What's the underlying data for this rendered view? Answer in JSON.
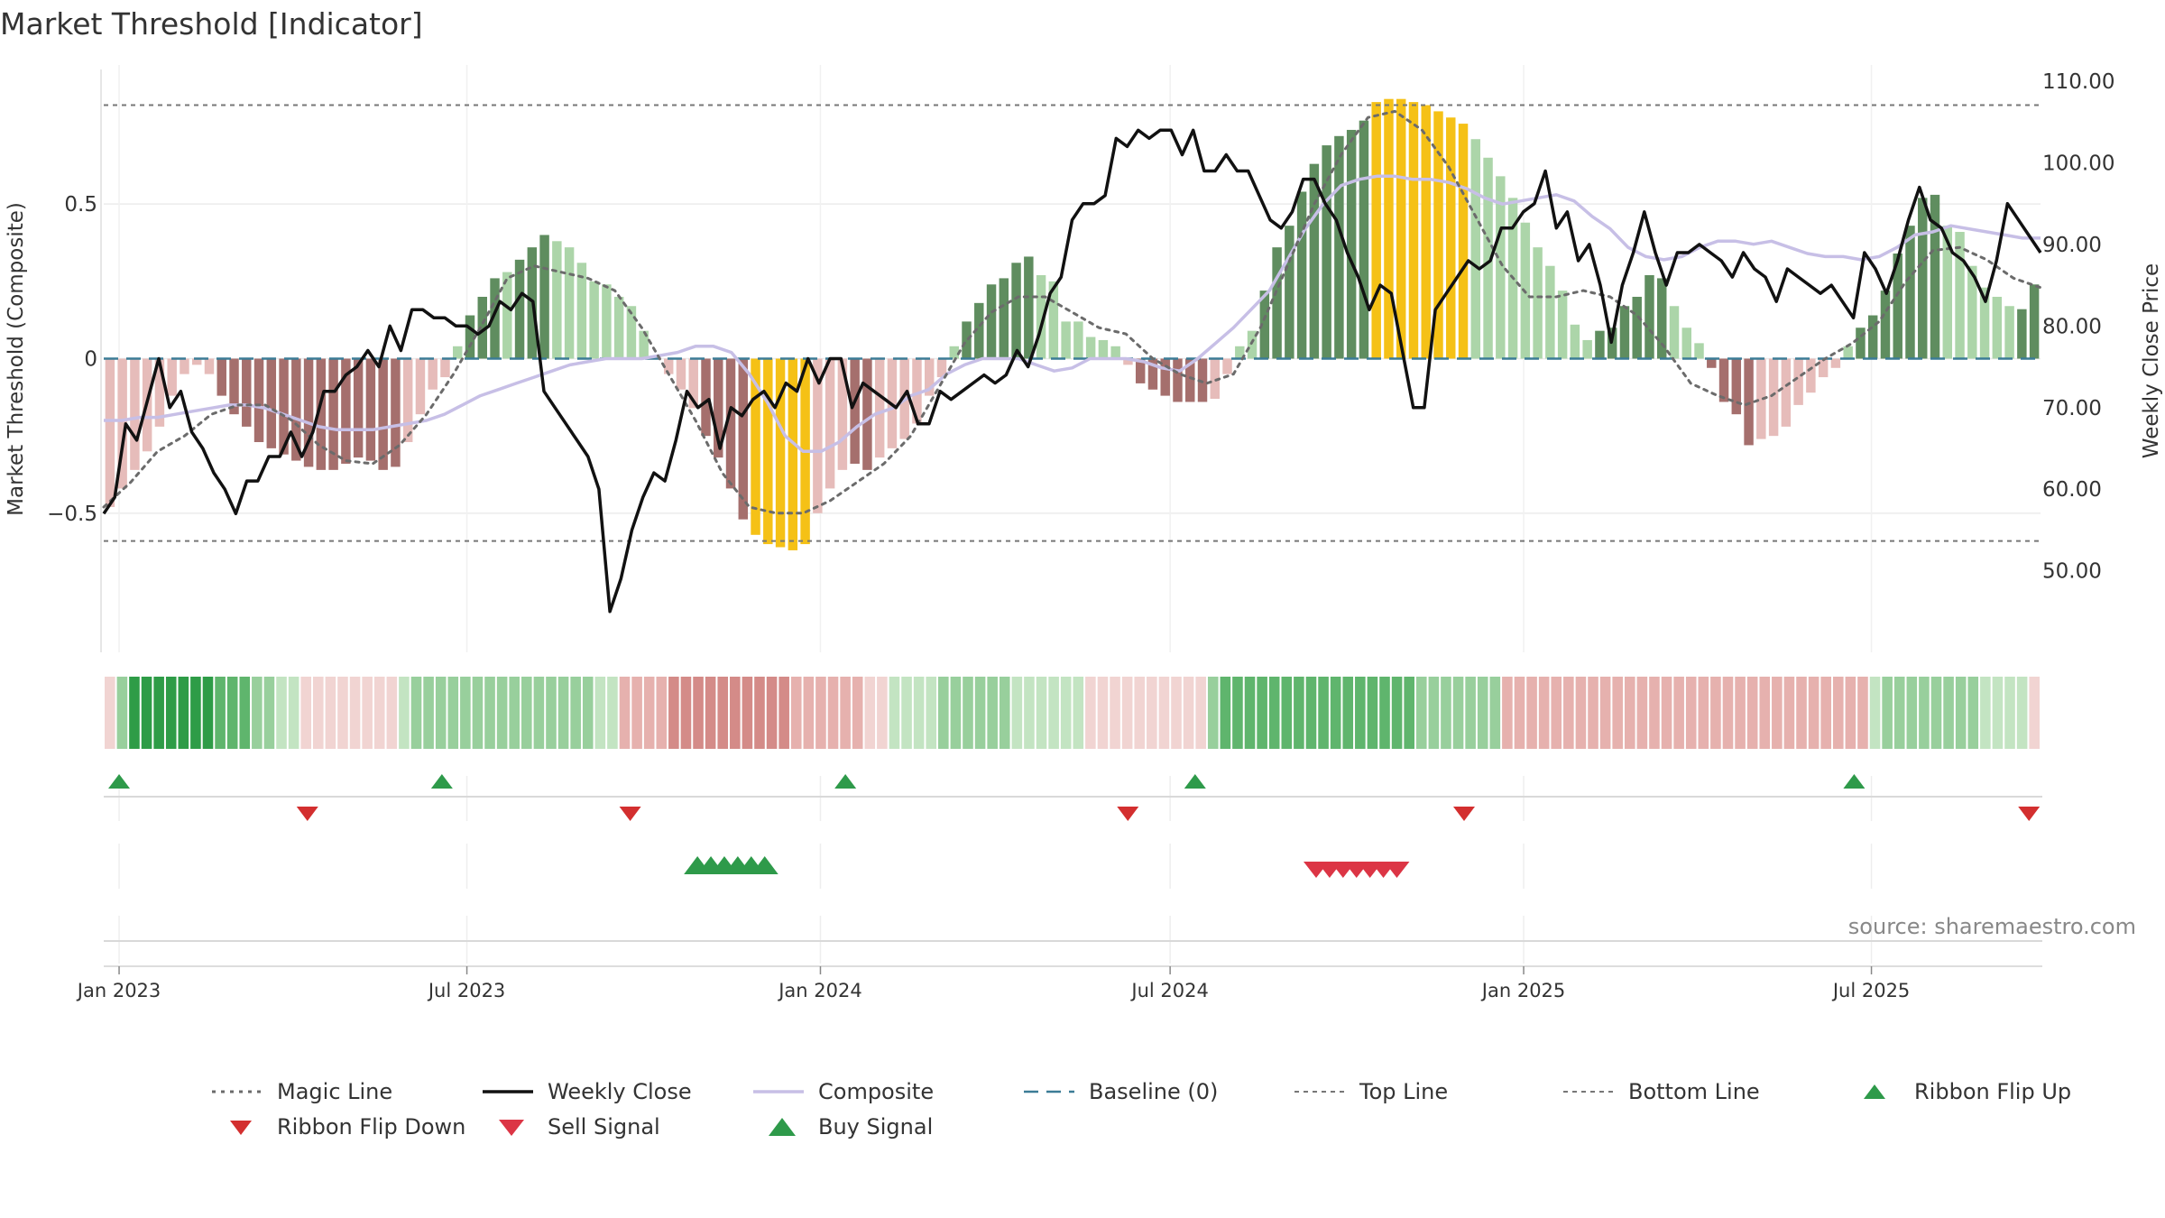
{
  "title": "Market Threshold [Indicator]",
  "source": "source: sharemaestro.com",
  "colors": {
    "bar_dark_green": "#5f8d5f",
    "bar_light_green": "#acd5a9",
    "bar_dark_red": "#a56f6d",
    "bar_light_red": "#e6bcba",
    "bar_gold": "#f5c116",
    "weekly_close": "#111111",
    "composite": "#c7bfe6",
    "magic_line": "#6b6b6b",
    "baseline": "#3b7c96",
    "threshold_lines": "#777777",
    "buy": "#2e9a4a",
    "sell": "#dc3545",
    "flip_up": "#2e9a4a",
    "flip_down": "#d32f2f"
  },
  "chart_data": {
    "type": "bar",
    "x_axis": {
      "start": "2022-12-24",
      "end": "2025-09-27",
      "tick_labels": [
        "Jan 2023",
        "Jul 2023",
        "Jan 2024",
        "Jul 2024",
        "Jan 2025",
        "Jul 2025"
      ],
      "tick_dates": [
        "2023-01-01",
        "2023-07-01",
        "2024-01-01",
        "2024-07-01",
        "2025-01-01",
        "2025-07-01"
      ]
    },
    "left_axis": {
      "label": "Market Threshold (Composite)",
      "ticks": [
        0.5,
        0,
        -0.5
      ],
      "tick_labels": [
        "0.5",
        "0",
        "−0.5"
      ],
      "range": [
        -0.95,
        0.95
      ]
    },
    "right_axis": {
      "label": "Weekly Close Price",
      "ticks": [
        110,
        100,
        90,
        80,
        70,
        60,
        50
      ],
      "tick_labels": [
        "110.00",
        "100.00",
        "90.00",
        "80.00",
        "70.00",
        "60.00",
        "50.00"
      ],
      "range": [
        40,
        112
      ]
    },
    "top_line": 0.82,
    "bottom_line": -0.59,
    "threshold_bars": [
      -0.48,
      -0.42,
      -0.36,
      -0.3,
      -0.22,
      -0.12,
      -0.05,
      -0.02,
      -0.05,
      -0.12,
      -0.18,
      -0.22,
      -0.27,
      -0.29,
      -0.31,
      -0.33,
      -0.35,
      -0.36,
      -0.36,
      -0.34,
      -0.32,
      -0.33,
      -0.36,
      -0.35,
      -0.27,
      -0.18,
      -0.1,
      -0.06,
      0.04,
      0.14,
      0.2,
      0.26,
      0.28,
      0.32,
      0.36,
      0.4,
      0.38,
      0.36,
      0.31,
      0.25,
      0.24,
      0.2,
      0.17,
      0.09,
      0.01,
      -0.05,
      -0.1,
      -0.16,
      -0.25,
      -0.32,
      -0.42,
      -0.52,
      -0.57,
      -0.6,
      -0.61,
      -0.62,
      -0.6,
      -0.5,
      -0.42,
      -0.36,
      -0.34,
      -0.36,
      -0.32,
      -0.29,
      -0.26,
      -0.21,
      -0.12,
      -0.06,
      0.04,
      0.12,
      0.18,
      0.24,
      0.26,
      0.31,
      0.33,
      0.27,
      0.25,
      0.12,
      0.12,
      0.07,
      0.06,
      0.04,
      -0.02,
      -0.08,
      -0.1,
      -0.12,
      -0.14,
      -0.14,
      -0.14,
      -0.13,
      -0.05,
      0.04,
      0.09,
      0.22,
      0.36,
      0.43,
      0.54,
      0.63,
      0.69,
      0.72,
      0.74,
      0.77,
      0.83,
      0.84,
      0.84,
      0.83,
      0.82,
      0.8,
      0.78,
      0.76,
      0.71,
      0.65,
      0.59,
      0.52,
      0.44,
      0.36,
      0.3,
      0.22,
      0.11,
      0.06,
      0.09,
      0.1,
      0.17,
      0.2,
      0.27,
      0.26,
      0.17,
      0.1,
      0.05,
      -0.03,
      -0.14,
      -0.18,
      -0.28,
      -0.26,
      -0.25,
      -0.22,
      -0.15,
      -0.11,
      -0.06,
      -0.03,
      0.04,
      0.1,
      0.14,
      0.22,
      0.34,
      0.43,
      0.52,
      0.53,
      0.43,
      0.41,
      0.3,
      0.23,
      0.2,
      0.17,
      0.16,
      0.24
    ],
    "bar_colors": [
      "lr",
      "lr",
      "lr",
      "lr",
      "lr",
      "lr",
      "lr",
      "lr",
      "lr",
      "dr",
      "dr",
      "dr",
      "dr",
      "dr",
      "dr",
      "dr",
      "dr",
      "dr",
      "dr",
      "dr",
      "dr",
      "dr",
      "dr",
      "dr",
      "lr",
      "lr",
      "lr",
      "lr",
      "lg",
      "dg",
      "dg",
      "dg",
      "lg",
      "dg",
      "dg",
      "dg",
      "lg",
      "lg",
      "lg",
      "lg",
      "lg",
      "lg",
      "lg",
      "lg",
      "lr",
      "lr",
      "lr",
      "lr",
      "dr",
      "dr",
      "dr",
      "dr",
      "gold",
      "gold",
      "gold",
      "gold",
      "gold",
      "lr",
      "lr",
      "lr",
      "dr",
      "dr",
      "lr",
      "lr",
      "lr",
      "lr",
      "lr",
      "lr",
      "lg",
      "dg",
      "dg",
      "dg",
      "dg",
      "dg",
      "dg",
      "lg",
      "lg",
      "lg",
      "lg",
      "lg",
      "lg",
      "lg",
      "lr",
      "dr",
      "dr",
      "dr",
      "dr",
      "dr",
      "dr",
      "lr",
      "lr",
      "lg",
      "lg",
      "dg",
      "dg",
      "dg",
      "dg",
      "dg",
      "dg",
      "dg",
      "dg",
      "dg",
      "gold",
      "gold",
      "gold",
      "gold",
      "gold",
      "gold",
      "gold",
      "gold",
      "lg",
      "lg",
      "lg",
      "lg",
      "lg",
      "lg",
      "lg",
      "lg",
      "lg",
      "lg",
      "dg",
      "dg",
      "dg",
      "dg",
      "dg",
      "dg",
      "lg",
      "lg",
      "lg",
      "dr",
      "dr",
      "dr",
      "dr",
      "lr",
      "lr",
      "lr",
      "lr",
      "lr",
      "lr",
      "lr",
      "lg",
      "dg",
      "dg",
      "dg",
      "dg",
      "dg",
      "dg",
      "dg",
      "lg",
      "lg",
      "lg",
      "lg",
      "lg",
      "lg",
      "dg",
      "dg"
    ],
    "weekly_close": [
      57,
      59,
      68,
      66,
      71,
      76,
      70,
      72,
      67,
      65,
      62,
      60,
      57,
      61,
      61,
      64,
      64,
      67,
      64,
      67,
      72,
      72,
      74,
      75,
      77,
      75,
      80,
      77,
      82,
      82,
      81,
      81,
      80,
      80,
      79,
      80,
      83,
      82,
      84,
      83,
      72,
      70,
      68,
      66,
      64,
      60,
      45,
      49,
      55,
      59,
      62,
      61,
      66,
      72,
      70,
      71,
      65,
      70,
      69,
      71,
      72,
      70,
      73,
      72,
      76,
      73,
      76,
      76,
      70,
      73,
      72,
      71,
      70,
      72,
      68,
      68,
      72,
      71,
      72,
      73,
      74,
      73,
      74,
      77,
      75,
      79,
      84,
      86,
      93,
      95,
      95,
      96,
      103,
      102,
      104,
      103,
      104,
      104,
      101,
      104,
      99,
      99,
      101,
      99,
      99,
      96,
      93,
      92,
      94,
      98,
      98,
      95,
      93,
      89,
      86,
      82,
      85,
      84,
      77,
      70,
      70,
      82,
      84,
      86,
      88,
      87,
      88,
      92,
      92,
      94,
      95,
      99,
      92,
      94,
      88,
      90,
      85,
      78,
      85,
      89,
      94,
      89,
      85,
      89,
      89,
      90,
      89,
      88,
      86,
      89,
      87,
      86,
      83,
      87,
      86,
      85,
      84,
      85,
      83,
      81,
      89,
      87,
      84,
      88,
      93,
      97,
      93,
      92,
      89,
      88,
      86,
      83,
      88,
      95,
      93,
      91,
      89
    ],
    "composite": [
      -0.2,
      -0.2,
      -0.19,
      -0.19,
      -0.18,
      -0.17,
      -0.16,
      -0.15,
      -0.15,
      -0.16,
      -0.18,
      -0.2,
      -0.22,
      -0.23,
      -0.23,
      -0.23,
      -0.22,
      -0.21,
      -0.2,
      -0.18,
      -0.15,
      -0.12,
      -0.1,
      -0.08,
      -0.06,
      -0.04,
      -0.02,
      -0.01,
      0.0,
      0.0,
      0.0,
      0.01,
      0.02,
      0.04,
      0.04,
      0.02,
      -0.05,
      -0.14,
      -0.25,
      -0.3,
      -0.3,
      -0.27,
      -0.22,
      -0.18,
      -0.16,
      -0.12,
      -0.1,
      -0.05,
      -0.02,
      0.0,
      0.0,
      0.0,
      -0.02,
      -0.04,
      -0.03,
      0.0,
      0.0,
      0.0,
      -0.01,
      -0.03,
      -0.04,
      0.0,
      0.05,
      0.1,
      0.16,
      0.22,
      0.32,
      0.42,
      0.5,
      0.56,
      0.58,
      0.59,
      0.59,
      0.58,
      0.58,
      0.57,
      0.55,
      0.52,
      0.5,
      0.51,
      0.52,
      0.53,
      0.51,
      0.46,
      0.42,
      0.36,
      0.33,
      0.32,
      0.33,
      0.36,
      0.38,
      0.38,
      0.37,
      0.38,
      0.36,
      0.34,
      0.33,
      0.33,
      0.32,
      0.33,
      0.36,
      0.4,
      0.41,
      0.43,
      0.42,
      0.41,
      0.4,
      0.39,
      0.39
    ],
    "magic_line": [
      -0.48,
      -0.4,
      -0.3,
      -0.25,
      -0.18,
      -0.15,
      -0.15,
      -0.2,
      -0.28,
      -0.33,
      -0.34,
      -0.28,
      -0.18,
      -0.05,
      0.1,
      0.26,
      0.3,
      0.28,
      0.26,
      0.22,
      0.1,
      -0.05,
      -0.2,
      -0.37,
      -0.48,
      -0.5,
      -0.5,
      -0.46,
      -0.4,
      -0.34,
      -0.25,
      -0.1,
      0.05,
      0.15,
      0.2,
      0.2,
      0.15,
      0.1,
      0.08,
      0.0,
      -0.05,
      -0.08,
      -0.05,
      0.1,
      0.3,
      0.5,
      0.66,
      0.78,
      0.8,
      0.74,
      0.62,
      0.46,
      0.3,
      0.2,
      0.2,
      0.22,
      0.2,
      0.14,
      0.04,
      -0.08,
      -0.12,
      -0.15,
      -0.12,
      -0.06,
      0.0,
      0.05,
      0.12,
      0.25,
      0.35,
      0.36,
      0.32,
      0.26,
      0.23
    ],
    "signal_ribbon": [
      "r1",
      "g2",
      "g4",
      "g4",
      "g4",
      "g4",
      "g4",
      "g4",
      "g4",
      "g3",
      "g3",
      "g3",
      "g2",
      "g2",
      "g1",
      "g1",
      "r1",
      "r1",
      "r1",
      "r1",
      "r1",
      "r1",
      "r1",
      "r1",
      "g1",
      "g2",
      "g2",
      "g2",
      "g2",
      "g2",
      "g2",
      "g2",
      "g2",
      "g2",
      "g2",
      "g2",
      "g2",
      "g2",
      "g2",
      "g2",
      "g1",
      "g1",
      "r2",
      "r2",
      "r2",
      "r2",
      "r3",
      "r3",
      "r3",
      "r3",
      "r3",
      "r3",
      "r3",
      "r3",
      "r3",
      "r3",
      "r2",
      "r2",
      "r2",
      "r2",
      "r2",
      "r2",
      "r1",
      "r1",
      "g1",
      "g1",
      "g1",
      "g1",
      "g2",
      "g2",
      "g2",
      "g2",
      "g2",
      "g2",
      "g1",
      "g1",
      "g1",
      "g1",
      "g1",
      "g1",
      "r1",
      "r1",
      "r1",
      "r1",
      "r1",
      "r1",
      "r1",
      "r1",
      "r1",
      "r1",
      "g2",
      "g3",
      "g3",
      "g3",
      "g3",
      "g3",
      "g3",
      "g3",
      "g3",
      "g3",
      "g3",
      "g3",
      "g3",
      "g3",
      "g3",
      "g3",
      "g3",
      "g2",
      "g2",
      "g2",
      "g2",
      "g2",
      "g2",
      "g2",
      "r2",
      "r2",
      "r2",
      "r2",
      "r2",
      "r2",
      "r2",
      "r2",
      "r2",
      "r2",
      "r2",
      "r2",
      "r2",
      "r2",
      "r2",
      "r2",
      "r2",
      "r2",
      "r2",
      "r2",
      "r2",
      "r2",
      "r2",
      "r2",
      "r2",
      "r2",
      "r2",
      "r2",
      "r2",
      "r2",
      "g1",
      "g2",
      "g2",
      "g2",
      "g2",
      "g2",
      "g2",
      "g2",
      "g2",
      "g1",
      "g1",
      "g1",
      "g1",
      "r1"
    ],
    "ribbon_flip_up": [
      "2023-01-01",
      "2023-06-18",
      "2024-01-14",
      "2024-07-14",
      "2025-06-22"
    ],
    "ribbon_flip_down": [
      "2023-04-09",
      "2023-09-24",
      "2024-06-09",
      "2024-12-01",
      "2025-09-21"
    ],
    "buy_signal": [
      "2023-10-29",
      "2023-11-05",
      "2023-11-12",
      "2023-11-19",
      "2023-11-26",
      "2023-12-03"
    ],
    "sell_signal": [
      "2024-09-15",
      "2024-09-22",
      "2024-09-29",
      "2024-10-06",
      "2024-10-13",
      "2024-10-20",
      "2024-10-27"
    ],
    "legend": [
      {
        "label": "Magic Line",
        "kind": "dotted"
      },
      {
        "label": "Weekly Close",
        "kind": "solid"
      },
      {
        "label": "Composite",
        "kind": "composite"
      },
      {
        "label": "Baseline (0)",
        "kind": "dashed"
      },
      {
        "label": "Top Line",
        "kind": "thin-dash"
      },
      {
        "label": "Bottom Line",
        "kind": "thin-dash"
      },
      {
        "label": "Ribbon Flip Up",
        "kind": "tri-up-green"
      },
      {
        "label": "Ribbon Flip Down",
        "kind": "tri-down-red"
      },
      {
        "label": "Sell Signal",
        "kind": "tri-down-sell"
      },
      {
        "label": "Buy Signal",
        "kind": "tri-up-buy"
      }
    ],
    "legend_placement": "bottom",
    "grid": true
  }
}
